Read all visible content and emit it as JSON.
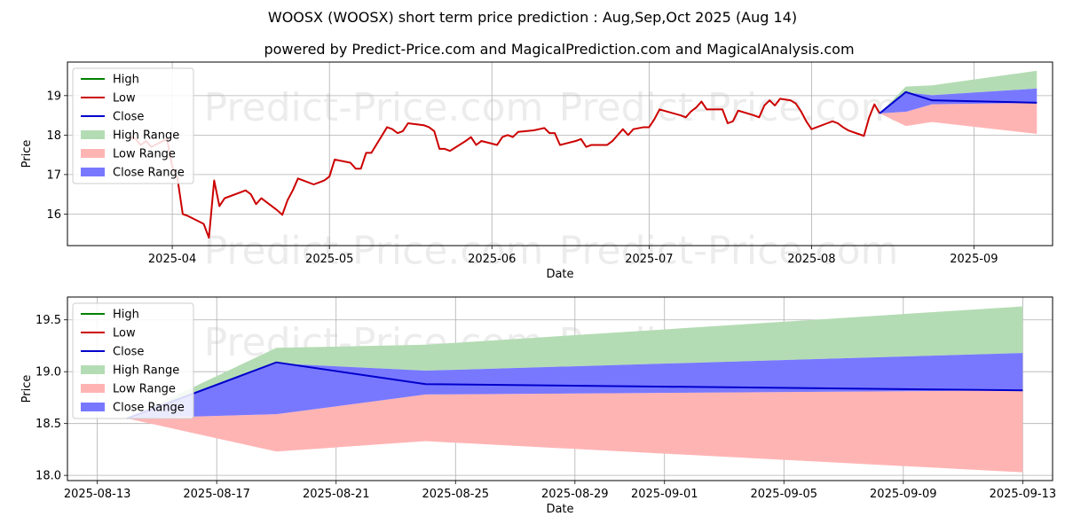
{
  "header": {
    "title": "WOOSX (WOOSX) short term price prediction : Aug,Sep,Oct 2025 (Aug 14)",
    "subtitle": "powered by Predict-Price.com and MagicalPrediction.com and MagicalAnalysis.com"
  },
  "watermark": "Predict-Price.com",
  "legend": {
    "placement": "upper-left",
    "items": [
      {
        "key": "high",
        "label": "High",
        "kind": "line",
        "color": "#008000"
      },
      {
        "key": "low",
        "label": "Low",
        "kind": "line",
        "color": "#cc0000"
      },
      {
        "key": "close",
        "label": "Close",
        "kind": "line",
        "color": "#0000cc"
      },
      {
        "key": "high_range",
        "label": "High Range",
        "kind": "patch",
        "color": "#b4dcb4"
      },
      {
        "key": "low_range",
        "label": "Low Range",
        "kind": "patch",
        "color": "#ffb4b4"
      },
      {
        "key": "close_range",
        "label": "Close Range",
        "kind": "patch",
        "color": "#7878ff"
      }
    ]
  },
  "chart_data": [
    {
      "type": "line",
      "xlabel": "Date",
      "ylabel": "Price",
      "xlim": [
        "2025-03-12",
        "2025-09-16"
      ],
      "ylim": [
        15.2,
        19.85
      ],
      "xticks": [
        "2025-04-01",
        "2025-05-01",
        "2025-06-01",
        "2025-07-01",
        "2025-08-01",
        "2025-09-01"
      ],
      "xtick_labels": [
        "2025-04",
        "2025-05",
        "2025-06",
        "2025-07",
        "2025-08",
        "2025-09"
      ],
      "yticks": [
        16,
        17,
        18,
        19
      ],
      "grid": true,
      "history_low": {
        "name": "Low",
        "points": [
          [
            "2025-03-24",
            17.95
          ],
          [
            "2025-03-25",
            17.9
          ],
          [
            "2025-03-26",
            17.75
          ],
          [
            "2025-03-27",
            17.85
          ],
          [
            "2025-03-28",
            17.7
          ],
          [
            "2025-03-31",
            17.9
          ],
          [
            "2025-04-01",
            17.2
          ],
          [
            "2025-04-02",
            16.9
          ],
          [
            "2025-04-03",
            16.0
          ],
          [
            "2025-04-04",
            15.95
          ],
          [
            "2025-04-07",
            15.75
          ],
          [
            "2025-04-08",
            15.4
          ],
          [
            "2025-04-09",
            16.85
          ],
          [
            "2025-04-10",
            16.2
          ],
          [
            "2025-04-11",
            16.4
          ],
          [
            "2025-04-14",
            16.55
          ],
          [
            "2025-04-15",
            16.6
          ],
          [
            "2025-04-16",
            16.5
          ],
          [
            "2025-04-17",
            16.25
          ],
          [
            "2025-04-18",
            16.4
          ],
          [
            "2025-04-21",
            16.1
          ],
          [
            "2025-04-22",
            15.98
          ],
          [
            "2025-04-23",
            16.35
          ],
          [
            "2025-04-24",
            16.6
          ],
          [
            "2025-04-25",
            16.9
          ],
          [
            "2025-04-28",
            16.75
          ],
          [
            "2025-04-29",
            16.8
          ],
          [
            "2025-04-30",
            16.85
          ],
          [
            "2025-05-01",
            16.95
          ],
          [
            "2025-05-02",
            17.38
          ],
          [
            "2025-05-05",
            17.3
          ],
          [
            "2025-05-06",
            17.15
          ],
          [
            "2025-05-07",
            17.15
          ],
          [
            "2025-05-08",
            17.55
          ],
          [
            "2025-05-09",
            17.55
          ],
          [
            "2025-05-12",
            18.2
          ],
          [
            "2025-05-13",
            18.15
          ],
          [
            "2025-05-14",
            18.05
          ],
          [
            "2025-05-15",
            18.1
          ],
          [
            "2025-05-16",
            18.3
          ],
          [
            "2025-05-19",
            18.25
          ],
          [
            "2025-05-20",
            18.2
          ],
          [
            "2025-05-21",
            18.1
          ],
          [
            "2025-05-22",
            17.65
          ],
          [
            "2025-05-23",
            17.65
          ],
          [
            "2025-05-24",
            17.6
          ],
          [
            "2025-05-27",
            17.85
          ],
          [
            "2025-05-28",
            17.95
          ],
          [
            "2025-05-29",
            17.75
          ],
          [
            "2025-05-30",
            17.85
          ],
          [
            "2025-06-02",
            17.75
          ],
          [
            "2025-06-03",
            17.95
          ],
          [
            "2025-06-04",
            18.0
          ],
          [
            "2025-06-05",
            17.95
          ],
          [
            "2025-06-06",
            18.08
          ],
          [
            "2025-06-09",
            18.12
          ],
          [
            "2025-06-10",
            18.15
          ],
          [
            "2025-06-11",
            18.18
          ],
          [
            "2025-06-12",
            18.05
          ],
          [
            "2025-06-13",
            18.05
          ],
          [
            "2025-06-14",
            17.75
          ],
          [
            "2025-06-17",
            17.85
          ],
          [
            "2025-06-18",
            17.9
          ],
          [
            "2025-06-19",
            17.7
          ],
          [
            "2025-06-20",
            17.75
          ],
          [
            "2025-06-23",
            17.75
          ],
          [
            "2025-06-24",
            17.85
          ],
          [
            "2025-06-25",
            18.0
          ],
          [
            "2025-06-26",
            18.15
          ],
          [
            "2025-06-27",
            18.0
          ],
          [
            "2025-06-28",
            18.15
          ],
          [
            "2025-06-30",
            18.2
          ],
          [
            "2025-07-01",
            18.2
          ],
          [
            "2025-07-02",
            18.4
          ],
          [
            "2025-07-03",
            18.65
          ],
          [
            "2025-07-07",
            18.5
          ],
          [
            "2025-07-08",
            18.45
          ],
          [
            "2025-07-09",
            18.6
          ],
          [
            "2025-07-10",
            18.7
          ],
          [
            "2025-07-11",
            18.85
          ],
          [
            "2025-07-12",
            18.65
          ],
          [
            "2025-07-14",
            18.65
          ],
          [
            "2025-07-15",
            18.65
          ],
          [
            "2025-07-16",
            18.3
          ],
          [
            "2025-07-17",
            18.35
          ],
          [
            "2025-07-18",
            18.62
          ],
          [
            "2025-07-21",
            18.5
          ],
          [
            "2025-07-22",
            18.45
          ],
          [
            "2025-07-23",
            18.75
          ],
          [
            "2025-07-24",
            18.88
          ],
          [
            "2025-07-25",
            18.75
          ],
          [
            "2025-07-26",
            18.92
          ],
          [
            "2025-07-28",
            18.88
          ],
          [
            "2025-07-29",
            18.8
          ],
          [
            "2025-07-30",
            18.6
          ],
          [
            "2025-07-31",
            18.35
          ],
          [
            "2025-08-01",
            18.15
          ],
          [
            "2025-08-04",
            18.3
          ],
          [
            "2025-08-05",
            18.35
          ],
          [
            "2025-08-06",
            18.3
          ],
          [
            "2025-08-07",
            18.2
          ],
          [
            "2025-08-08",
            18.12
          ],
          [
            "2025-08-11",
            17.98
          ],
          [
            "2025-08-12",
            18.45
          ],
          [
            "2025-08-13",
            18.78
          ],
          [
            "2025-08-14",
            18.55
          ]
        ]
      },
      "forecast": {
        "dates": [
          "2025-08-14",
          "2025-08-19",
          "2025-08-24",
          "2025-09-13"
        ],
        "close": [
          18.55,
          19.09,
          18.88,
          18.82
        ],
        "close_upper": [
          18.55,
          19.08,
          19.01,
          19.18
        ],
        "close_lower": [
          18.55,
          18.59,
          18.78,
          18.82
        ],
        "high_upper": [
          18.55,
          19.23,
          19.26,
          19.63
        ],
        "high_lower": [
          18.55,
          19.08,
          19.01,
          19.18
        ],
        "low_upper": [
          18.55,
          18.59,
          18.78,
          18.82
        ],
        "low_lower": [
          18.55,
          18.23,
          18.33,
          18.03
        ]
      }
    },
    {
      "type": "line",
      "xlabel": "Date",
      "ylabel": "Price",
      "xlim": [
        "2025-08-12",
        "2025-09-14"
      ],
      "ylim": [
        17.95,
        19.72
      ],
      "xticks": [
        "2025-08-13",
        "2025-08-17",
        "2025-08-21",
        "2025-08-25",
        "2025-08-29",
        "2025-09-01",
        "2025-09-05",
        "2025-09-09",
        "2025-09-13"
      ],
      "xtick_labels": [
        "2025-08-13",
        "2025-08-17",
        "2025-08-21",
        "2025-08-25",
        "2025-08-29",
        "2025-09-01",
        "2025-09-05",
        "2025-09-09",
        "2025-09-13"
      ],
      "yticks": [
        18.0,
        18.5,
        19.0,
        19.5
      ],
      "ytick_labels": [
        "18.0",
        "18.5",
        "19.0",
        "19.5"
      ],
      "grid": true,
      "forecast": {
        "dates": [
          "2025-08-14",
          "2025-08-19",
          "2025-08-24",
          "2025-09-13"
        ],
        "close": [
          18.55,
          19.09,
          18.88,
          18.82
        ],
        "close_upper": [
          18.55,
          19.08,
          19.01,
          19.18
        ],
        "close_lower": [
          18.55,
          18.59,
          18.78,
          18.82
        ],
        "high_upper": [
          18.55,
          19.23,
          19.26,
          19.63
        ],
        "high_lower": [
          18.55,
          19.08,
          19.01,
          19.18
        ],
        "low_upper": [
          18.55,
          18.59,
          18.78,
          18.82
        ],
        "low_lower": [
          18.55,
          18.23,
          18.33,
          18.03
        ]
      }
    }
  ]
}
